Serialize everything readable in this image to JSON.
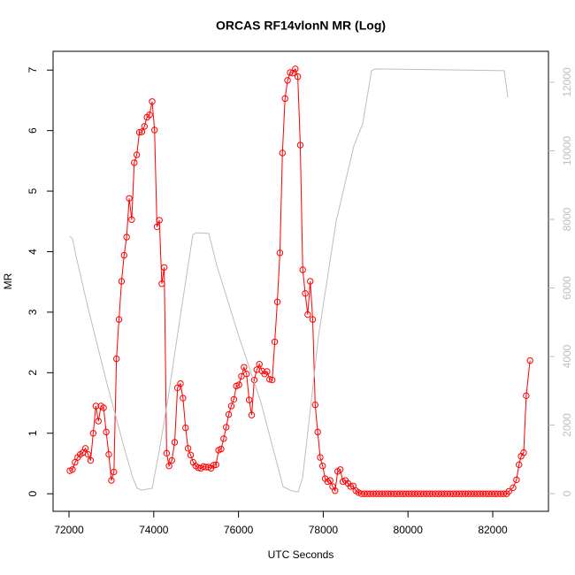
{
  "chart_data": {
    "type": "line",
    "title": "ORCAS RF14vlonN MR (Log)",
    "x_label": "UTC Seconds",
    "y_label": "MR",
    "xlim": [
      71624,
      83315
    ],
    "xticks": [
      72000,
      74000,
      76000,
      78000,
      80000,
      82000
    ],
    "ylim": [
      -0.29,
      7.31
    ],
    "yticks": [
      0,
      1,
      2,
      3,
      4,
      5,
      6,
      7
    ],
    "y2lim": [
      -516,
      12903
    ],
    "y2ticks": [
      0,
      2000,
      4000,
      6000,
      8000,
      10000,
      12000
    ],
    "series": [
      {
        "color": "#ff0000",
        "markers": true,
        "x": [
          72020,
          72081,
          72143,
          72204,
          72265,
          72326,
          72388,
          72449,
          72510,
          72571,
          72633,
          72694,
          72755,
          72816,
          72878,
          72939,
          73000,
          73060,
          73120,
          73180,
          73240,
          73300,
          73360,
          73420,
          73480,
          73540,
          73600,
          73660,
          73720,
          73780,
          73840,
          73900,
          73962,
          74019,
          74076,
          74133,
          74190,
          74247,
          74304,
          74360,
          74427,
          74494,
          74561,
          74630,
          74690,
          74750,
          74810,
          74870,
          74930,
          74990,
          75050,
          75110,
          75170,
          75230,
          75290,
          75350,
          75410,
          75470,
          75530,
          75590,
          75650,
          75710,
          75770,
          75830,
          75890,
          75950,
          76010,
          76070,
          76130,
          76190,
          76251,
          76311,
          76372,
          76432,
          76493,
          76553,
          76614,
          76674,
          76735,
          76795,
          76856,
          76916,
          76977,
          77037,
          77098,
          77158,
          77219,
          77279,
          77340,
          77399,
          77458,
          77516,
          77575,
          77634,
          77693,
          77751,
          77810,
          77869,
          77928,
          77986,
          78045,
          78104,
          78163,
          78221,
          78280,
          78341,
          78402,
          78463,
          78524,
          78585,
          78646,
          78707,
          78768,
          78830,
          78900,
          78970,
          79040,
          79110,
          79180,
          79250,
          79320,
          79390,
          79460,
          79530,
          79600,
          79670,
          79740,
          79810,
          79880,
          79950,
          80020,
          80090,
          80160,
          80230,
          80300,
          80370,
          80440,
          80510,
          80580,
          80650,
          80720,
          80790,
          80860,
          80930,
          81000,
          81070,
          81140,
          81210,
          81280,
          81350,
          81420,
          81490,
          81560,
          81630,
          81700,
          81770,
          81840,
          81910,
          81980,
          82050,
          82120,
          82190,
          82260,
          82330,
          82380,
          82480,
          82560,
          82620,
          82670,
          82730,
          82790,
          82880
        ],
        "values": [
          0.38,
          0.4,
          0.52,
          0.6,
          0.65,
          0.68,
          0.75,
          0.65,
          0.55,
          1.0,
          1.45,
          1.2,
          1.45,
          1.42,
          1.02,
          0.65,
          0.22,
          0.36,
          2.23,
          2.88,
          3.51,
          3.94,
          4.24,
          4.88,
          4.53,
          5.47,
          5.6,
          5.97,
          5.98,
          6.07,
          6.22,
          6.26,
          6.48,
          6.01,
          4.41,
          4.52,
          3.47,
          3.74,
          0.67,
          0.46,
          0.55,
          0.85,
          1.75,
          1.82,
          1.58,
          1.09,
          0.75,
          0.64,
          0.52,
          0.46,
          0.43,
          0.42,
          0.45,
          0.44,
          0.44,
          0.42,
          0.47,
          0.48,
          0.72,
          0.74,
          0.91,
          1.1,
          1.31,
          1.45,
          1.56,
          1.78,
          1.8,
          1.94,
          2.09,
          1.98,
          1.55,
          1.3,
          1.88,
          2.05,
          2.14,
          2.03,
          1.98,
          2.02,
          1.89,
          1.88,
          2.51,
          3.17,
          3.98,
          5.63,
          6.53,
          6.83,
          6.96,
          6.95,
          7.02,
          6.89,
          5.76,
          3.7,
          3.31,
          2.96,
          3.51,
          2.88,
          1.47,
          1.02,
          0.6,
          0.46,
          0.25,
          0.2,
          0.22,
          0.12,
          0.05,
          0.37,
          0.4,
          0.2,
          0.22,
          0.17,
          0.12,
          0.13,
          0.05,
          0.02,
          0,
          0,
          0,
          0,
          0,
          0,
          0,
          0,
          0,
          0,
          0,
          0,
          0,
          0,
          0,
          0,
          0,
          0,
          0,
          0,
          0,
          0,
          0,
          0,
          0,
          0,
          0,
          0,
          0,
          0,
          0,
          0,
          0,
          0,
          0,
          0,
          0,
          0,
          0,
          0,
          0,
          0,
          0,
          0,
          0,
          0,
          0,
          0,
          0,
          0,
          0.04,
          0.1,
          0.23,
          0.48,
          0.62,
          0.68,
          1.62,
          2.2
        ]
      },
      {
        "color": "#bebebe",
        "axis": "y2",
        "x": [
          72021,
          72084,
          72167,
          72459,
          72877,
          73294,
          73503,
          73608,
          73712,
          73962,
          74129,
          74338,
          74651,
          74923,
          75006,
          75299,
          75486,
          76008,
          76530,
          77052,
          77261,
          77407,
          77512,
          77679,
          77887,
          78305,
          78722,
          78931,
          79140,
          79244,
          82271,
          82355
        ],
        "values": [
          7510,
          7430,
          6920,
          5370,
          3300,
          1370,
          465,
          155,
          100,
          155,
          1240,
          2790,
          5370,
          7560,
          7610,
          7590,
          6660,
          4590,
          2660,
          200,
          80,
          50,
          465,
          2270,
          4590,
          7950,
          10140,
          10790,
          12340,
          12390,
          12340,
          11560
        ]
      }
    ]
  }
}
